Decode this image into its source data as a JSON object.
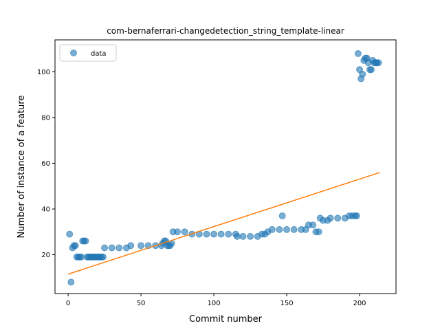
{
  "chart_data": {
    "type": "scatter",
    "title": "com-bernaferrari-changedetection_string_template-linear",
    "xlabel": "Commit number",
    "ylabel": "Number of instance of a feature",
    "xlim": [
      -9,
      225
    ],
    "ylim": [
      3,
      114
    ],
    "xticks": [
      0,
      50,
      100,
      150,
      200
    ],
    "yticks": [
      20,
      40,
      60,
      80,
      100
    ],
    "grid": false,
    "legend_position": "top-left",
    "series": [
      {
        "name": "data",
        "kind": "scatter",
        "color": "#1f77b4",
        "x": [
          1,
          2,
          3,
          4,
          5,
          6,
          7,
          8,
          9,
          10,
          11,
          12,
          13,
          14,
          15,
          16,
          17,
          18,
          19,
          20,
          21,
          22,
          23,
          24,
          25,
          30,
          35,
          40,
          43,
          50,
          55,
          60,
          64,
          65,
          66,
          67,
          68,
          69,
          70,
          71,
          72,
          75,
          80,
          85,
          90,
          95,
          100,
          105,
          110,
          115,
          116,
          120,
          125,
          130,
          133,
          135,
          137,
          140,
          145,
          147,
          150,
          155,
          160,
          163,
          165,
          168,
          170,
          172,
          173,
          175,
          178,
          180,
          185,
          190,
          193,
          195,
          197,
          198,
          199,
          200,
          201,
          202,
          203,
          204,
          205,
          206,
          207,
          208,
          209,
          210,
          211,
          212,
          213
        ],
        "y": [
          29,
          8,
          23,
          24,
          24,
          19,
          19,
          19,
          19,
          26,
          26,
          26,
          19,
          19,
          19,
          19,
          19,
          19,
          19,
          19,
          19,
          19,
          19,
          19,
          23,
          23,
          23,
          23,
          24,
          24,
          24,
          24,
          24,
          25,
          26,
          26,
          24,
          24,
          24,
          25,
          30,
          30,
          30,
          29,
          29,
          29,
          29,
          29,
          29,
          29,
          28,
          28,
          28,
          28,
          29,
          29,
          30,
          31,
          31,
          37,
          31,
          31,
          31,
          31,
          33,
          33,
          30,
          30,
          36,
          35,
          35,
          36,
          36,
          36,
          37,
          37,
          37,
          37,
          108,
          101,
          97,
          99,
          105,
          106,
          106,
          104,
          101,
          101,
          105,
          104,
          104,
          104,
          104
        ]
      },
      {
        "name": "",
        "kind": "line",
        "color": "#ff7f0e",
        "x": [
          0,
          214
        ],
        "y": [
          11.5,
          56
        ]
      }
    ]
  }
}
